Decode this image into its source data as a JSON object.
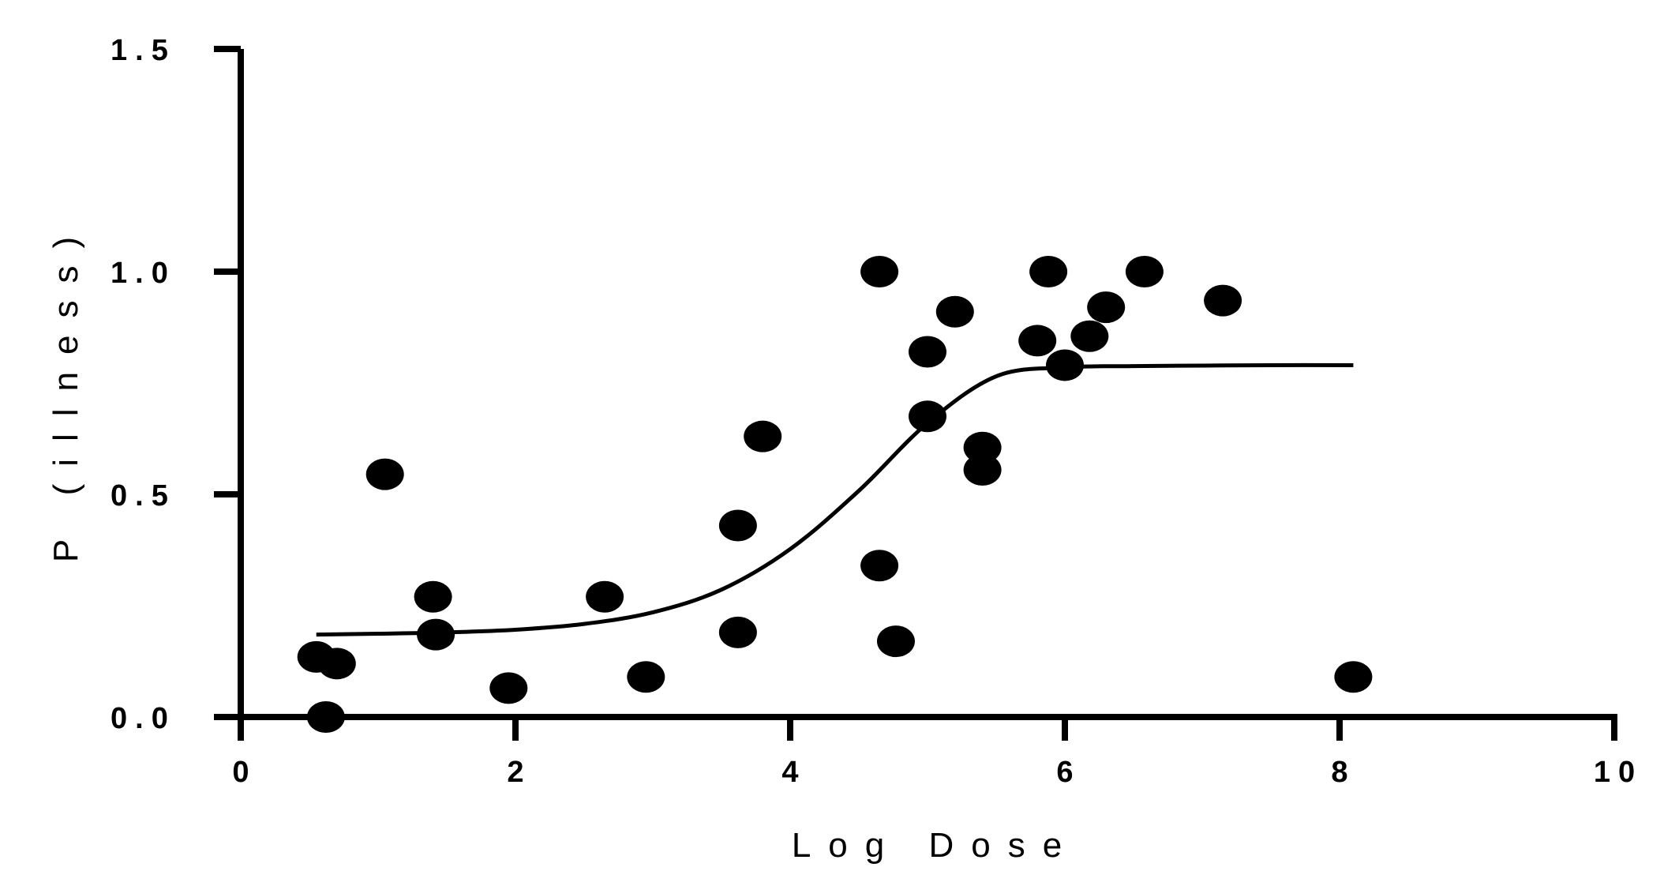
{
  "chart_data": {
    "type": "scatter",
    "title": "",
    "xlabel": "Log Dose",
    "ylabel": "P (illness)",
    "xlim": [
      0,
      10
    ],
    "ylim": [
      0,
      1.5
    ],
    "x_ticks": [
      0,
      2,
      4,
      6,
      8,
      10
    ],
    "x_tick_labels": [
      "0",
      "2",
      "4",
      "6",
      "8",
      "10"
    ],
    "y_ticks": [
      0,
      0.5,
      1,
      1.5
    ],
    "y_tick_labels": [
      "0.0",
      "0.5",
      "1.0",
      "1.5"
    ],
    "grid": false,
    "legend": "none",
    "series": [
      {
        "type": "scatter",
        "x": [
          0.55,
          0.62,
          0.7,
          1.05,
          1.4,
          1.42,
          1.95,
          2.65,
          2.95,
          3.62,
          3.62,
          3.8,
          4.65,
          4.65,
          4.77,
          5.0,
          5.0,
          5.2,
          5.4,
          5.4,
          5.8,
          5.88,
          6.0,
          6.18,
          6.3,
          6.58,
          7.15,
          8.1
        ],
        "y": [
          0.135,
          0.0,
          0.12,
          0.545,
          0.27,
          0.185,
          0.065,
          0.27,
          0.09,
          0.43,
          0.19,
          0.63,
          1.0,
          0.34,
          0.17,
          0.82,
          0.675,
          0.91,
          0.605,
          0.555,
          0.845,
          1.0,
          0.79,
          0.855,
          0.92,
          1.0,
          0.935,
          0.09
        ],
        "color": "#000000"
      },
      {
        "type": "line",
        "x": [
          0.55,
          1.0,
          1.5,
          2.0,
          2.5,
          3.0,
          3.5,
          4.0,
          4.5,
          5.0,
          5.5,
          6.0,
          6.5,
          7.0,
          7.5,
          8.1
        ],
        "y": [
          0.185,
          0.187,
          0.19,
          0.196,
          0.209,
          0.235,
          0.286,
          0.377,
          0.508,
          0.66,
          0.765,
          0.785,
          0.788,
          0.789,
          0.79,
          0.79
        ],
        "color": "#000000"
      }
    ]
  }
}
